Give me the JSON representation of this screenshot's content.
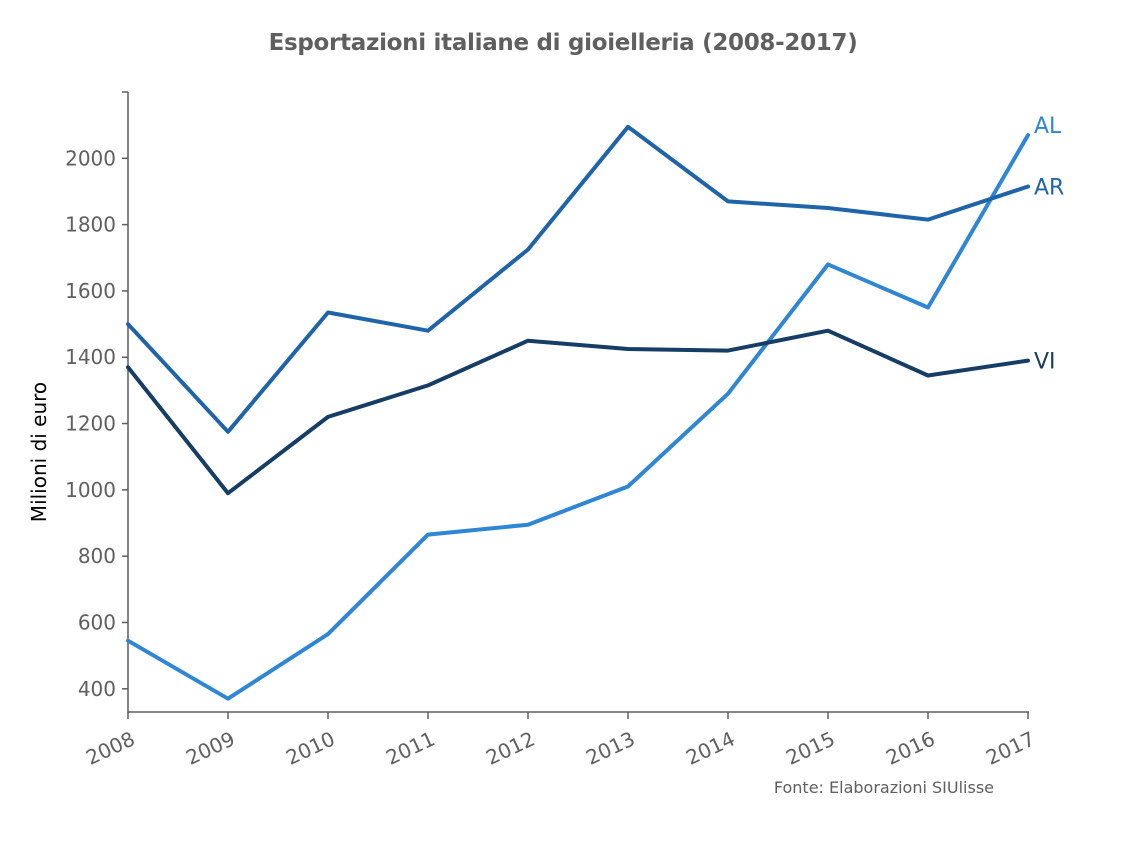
{
  "chart_data": {
    "type": "line",
    "title": "Esportazioni italiane di gioielleria (2008-2017)",
    "source": "Fonte: Elaborazioni SIUlisse",
    "xlabel": "",
    "ylabel": "Milioni di euro",
    "x": [
      "2008",
      "2009",
      "2010",
      "2011",
      "2012",
      "2013",
      "2014",
      "2015",
      "2016",
      "2017"
    ],
    "yticks": [
      400,
      600,
      800,
      1000,
      1200,
      1400,
      1600,
      1800,
      2000
    ],
    "ylim": [
      330,
      2200
    ],
    "grid": false,
    "series": [
      {
        "name": "AL",
        "color": "#2e86d4",
        "values": [
          545,
          370,
          565,
          865,
          895,
          1010,
          1290,
          1680,
          1550,
          2070
        ]
      },
      {
        "name": "AR",
        "color": "#1f64a8",
        "values": [
          1500,
          1175,
          1535,
          1480,
          1725,
          2095,
          1870,
          1850,
          1815,
          1915
        ]
      },
      {
        "name": "VI",
        "color": "#163d66",
        "values": [
          1370,
          990,
          1220,
          1315,
          1450,
          1425,
          1420,
          1480,
          1345,
          1390
        ]
      }
    ]
  }
}
